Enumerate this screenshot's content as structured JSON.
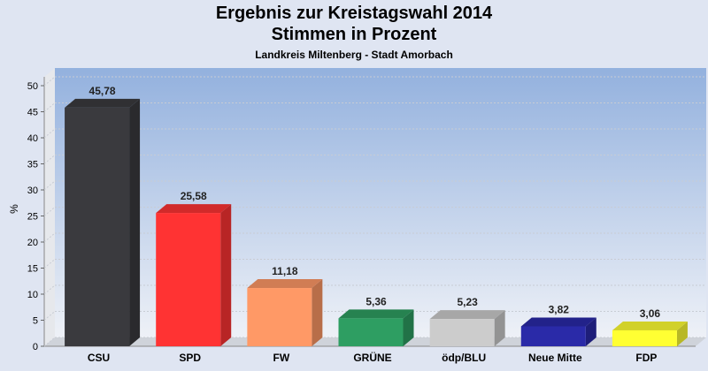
{
  "chart_data": {
    "type": "bar",
    "title": "Ergebnis zur Kreistagswahl 2014",
    "subtitle": "Stimmen in Prozent",
    "caption": "Landkreis Miltenberg - Stadt Amorbach",
    "ylabel": "%",
    "ylim": [
      0,
      50
    ],
    "yticks": [
      0,
      5,
      10,
      15,
      20,
      25,
      30,
      35,
      40,
      45,
      50
    ],
    "grid": true,
    "categories": [
      "CSU",
      "SPD",
      "FW",
      "GRÜNE",
      "ödp/BLU",
      "Neue Mitte",
      "FDP"
    ],
    "values": [
      45.78,
      25.58,
      11.18,
      5.36,
      5.23,
      3.82,
      3.06
    ],
    "value_labels": [
      "45,78",
      "25,58",
      "11,18",
      "5,36",
      "5,23",
      "3,82",
      "3,06"
    ],
    "colors": [
      "#3a3a3e",
      "#ff3333",
      "#ff9966",
      "#2e9e62",
      "#cccccc",
      "#2a2aa8",
      "#ffff33"
    ]
  }
}
